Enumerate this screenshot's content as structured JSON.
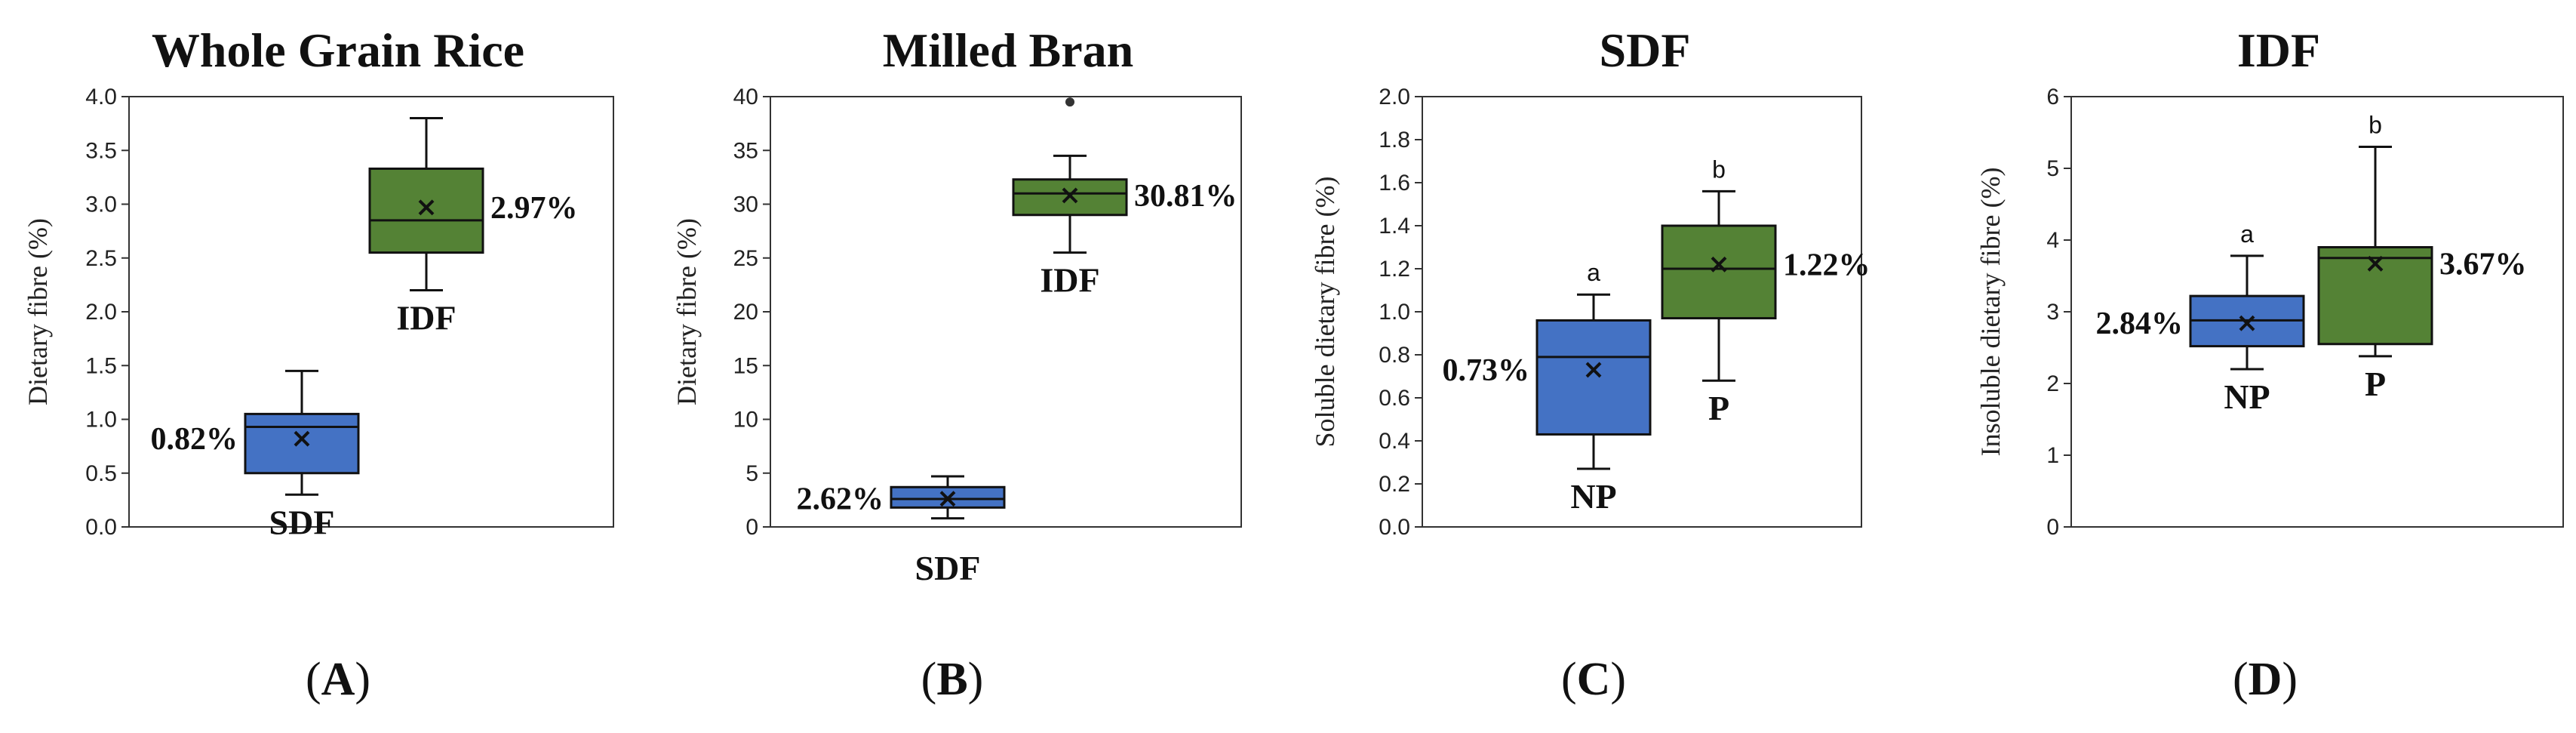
{
  "chart_data": [
    {
      "type": "box",
      "panel_label": "A",
      "title": "Whole Grain Rice",
      "ylabel": "Dietary fibre (%)",
      "ylim": [
        0,
        4.0
      ],
      "yticks": [
        "0.0",
        "0.5",
        "1.0",
        "1.5",
        "2.0",
        "2.5",
        "3.0",
        "3.5",
        "4.0"
      ],
      "boxes": [
        {
          "name": "SDF",
          "color": "#4472c4",
          "min": 0.3,
          "q1": 0.5,
          "median": 0.93,
          "q3": 1.05,
          "max": 1.45,
          "mean": 0.82,
          "mean_label": "0.82%",
          "cat_pos": 0.3,
          "sig": ""
        },
        {
          "name": "IDF",
          "color": "#548235",
          "min": 2.2,
          "q1": 2.55,
          "median": 2.85,
          "q3": 3.33,
          "max": 3.8,
          "mean": 2.97,
          "mean_label": "2.97%",
          "cat_pos": 2.05,
          "sig": ""
        }
      ]
    },
    {
      "type": "box",
      "panel_label": "B",
      "title": "Milled Bran",
      "ylabel": "Dietary fibre (%)",
      "ylim": [
        0,
        40
      ],
      "yticks": [
        "0",
        "5",
        "10",
        "15",
        "20",
        "25",
        "30",
        "35",
        "40"
      ],
      "boxes": [
        {
          "name": "SDF",
          "color": "#4472c4",
          "min": 0.8,
          "q1": 1.8,
          "median": 2.6,
          "q3": 3.7,
          "max": 4.7,
          "mean": 2.62,
          "mean_label": "2.62%",
          "cat_pos": -2.5,
          "sig": "",
          "outliers": []
        },
        {
          "name": "IDF",
          "color": "#548235",
          "min": 25.5,
          "q1": 29.0,
          "median": 31.0,
          "q3": 32.3,
          "max": 34.5,
          "mean": 30.81,
          "mean_label": "30.81%",
          "cat_pos": 22.5,
          "sig": "",
          "outliers": [
            39.5
          ]
        }
      ]
    },
    {
      "type": "box",
      "panel_label": "C",
      "title": "SDF",
      "ylabel": "Soluble dietary fibre (%)",
      "ylim": [
        0,
        2.0
      ],
      "yticks": [
        "0.0",
        "0.2",
        "0.4",
        "0.6",
        "0.8",
        "1.0",
        "1.2",
        "1.4",
        "1.6",
        "1.8",
        "2.0"
      ],
      "boxes": [
        {
          "name": "NP",
          "color": "#4472c4",
          "min": 0.27,
          "q1": 0.43,
          "median": 0.79,
          "q3": 0.96,
          "max": 1.08,
          "mean": 0.73,
          "mean_label": "0.73%",
          "cat_pos": 0.15,
          "sig": "a"
        },
        {
          "name": "P",
          "color": "#548235",
          "min": 0.68,
          "q1": 0.97,
          "median": 1.2,
          "q3": 1.4,
          "max": 1.56,
          "mean": 1.22,
          "mean_label": "1.22%",
          "cat_pos": 0.55,
          "sig": "b"
        }
      ]
    },
    {
      "type": "box",
      "panel_label": "D",
      "title": "IDF",
      "ylabel": "Insoluble dietary fibre (%)",
      "ylim": [
        0,
        6
      ],
      "yticks": [
        "0",
        "1",
        "2",
        "3",
        "4",
        "5",
        "6"
      ],
      "boxes": [
        {
          "name": "NP",
          "color": "#4472c4",
          "min": 2.2,
          "q1": 2.52,
          "median": 2.88,
          "q3": 3.22,
          "max": 3.78,
          "mean": 2.84,
          "mean_label": "2.84%",
          "cat_pos": 1.75,
          "sig": "a"
        },
        {
          "name": "P",
          "color": "#548235",
          "min": 2.38,
          "q1": 2.55,
          "median": 3.75,
          "q3": 3.9,
          "max": 5.3,
          "mean": 3.67,
          "mean_label": "3.67%",
          "cat_pos": 1.85,
          "sig": "b"
        }
      ]
    }
  ]
}
